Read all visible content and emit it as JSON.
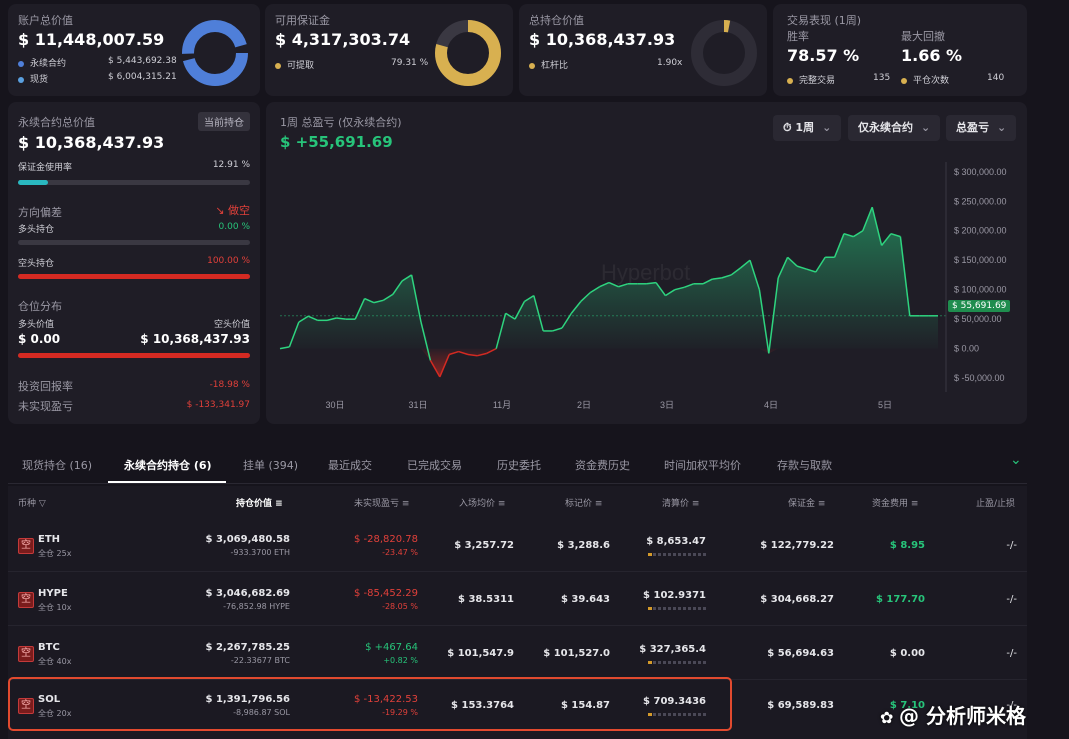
{
  "summary": {
    "account_total": {
      "label": "账户总价值",
      "value": "$ 11,448,007.59",
      "items": [
        {
          "label": "永续合约",
          "value": "$ 5,443,692.38",
          "color": "#4f7fd9"
        },
        {
          "label": "现货",
          "value": "$ 6,004,315.21",
          "color": "#5aa0e0"
        }
      ]
    },
    "available_margin": {
      "label": "可用保证金",
      "value": "$ 4,317,303.74",
      "item_label": "可提取",
      "item_value": "79.31 %",
      "ratio": 0.7931
    },
    "total_position": {
      "label": "总持仓价值",
      "value": "$ 10,368,437.93",
      "item_label": "杠杆比",
      "item_value": "1.90x",
      "ratio": 0.03
    },
    "performance": {
      "label": "交易表现 (1周)",
      "win_rate_label": "胜率",
      "win_rate": "78.57 %",
      "max_drawdown_label": "最大回撤",
      "max_drawdown": "1.66 %",
      "completed_label": "完整交易",
      "completed": "135",
      "closed_label": "平仓次数",
      "closed": "140"
    }
  },
  "perp_panel": {
    "title": "永续合约总价值",
    "badge": "当前持仓",
    "value": "$ 10,368,437.93",
    "margin_usage_label": "保证金使用率",
    "margin_usage": "12.91 %",
    "margin_usage_ratio": 0.1291,
    "bias_label": "方向偏差",
    "bias_value": "做空",
    "long_label": "多头持仓",
    "long_value": "0.00 %",
    "short_label": "空头持仓",
    "short_value": "100.00 %",
    "distribution_label": "仓位分布",
    "long_val_label": "多头价值",
    "short_val_label": "空头价值",
    "long_val": "$ 0.00",
    "short_val": "$ 10,368,437.93",
    "roi_label": "投资回报率",
    "roi": "-18.98 %",
    "upnl_label": "未实现盈亏",
    "upnl": "$ -133,341.97"
  },
  "pnl_chart": {
    "title": "1周 总盈亏 (仅永续合约)",
    "value": "$ +55,691.69",
    "btn_period": "1周",
    "btn_scope": "仅永续合约",
    "btn_metric": "总盈亏",
    "watermark": "Hyperbot",
    "current_label": "$ 55,691.69"
  },
  "chart_data": {
    "type": "area",
    "title": "1周 总盈亏 (仅永续合约)",
    "x_tick_labels": [
      "30日",
      "31日",
      "11月",
      "2日",
      "3日",
      "4日",
      "5日"
    ],
    "y_tick_labels": [
      "$ 300,000.00",
      "$ 250,000.00",
      "$ 200,000.00",
      "$ 150,000.00",
      "$ 100,000.00",
      "$ 50,000.00",
      "$ 0.00",
      "$ -50,000.00"
    ],
    "ylim": [
      -60000,
      320000
    ],
    "x": [
      0,
      1,
      2,
      3,
      4,
      5,
      6,
      7,
      8,
      9,
      10,
      11,
      12,
      13,
      14,
      15,
      16,
      17,
      18,
      19,
      20,
      21,
      22,
      23,
      24,
      25,
      26,
      27,
      28,
      29,
      30,
      31,
      32,
      33,
      34,
      35,
      36,
      37,
      38,
      39,
      40,
      41,
      42,
      43,
      44,
      45,
      46,
      47,
      48,
      49,
      50,
      51,
      52,
      53,
      54,
      55,
      56,
      57,
      58,
      59,
      60,
      61,
      62,
      63,
      64,
      65,
      66,
      67,
      68,
      69,
      70
    ],
    "values": [
      0,
      3000,
      45000,
      55000,
      48000,
      48000,
      52000,
      50000,
      50000,
      85000,
      78000,
      82000,
      92000,
      115000,
      125000,
      45000,
      -20000,
      -48000,
      -10000,
      -5000,
      -10000,
      -12000,
      -8000,
      0,
      60000,
      50000,
      80000,
      90000,
      30000,
      30000,
      35000,
      60000,
      80000,
      95000,
      105000,
      112000,
      105000,
      110000,
      110000,
      110000,
      112000,
      90000,
      100000,
      104000,
      110000,
      110000,
      118000,
      120000,
      125000,
      137000,
      150000,
      100000,
      -8000,
      120000,
      155000,
      140000,
      135000,
      130000,
      155000,
      155000,
      195000,
      190000,
      200000,
      240000,
      175000,
      195000,
      190000,
      55691,
      55691,
      55691,
      55691
    ],
    "grid": false
  },
  "tabs": [
    {
      "label": "现货持仓 (16)"
    },
    {
      "label": "永续合约持仓 (6)"
    },
    {
      "label": "挂单 (394)"
    },
    {
      "label": "最近成交"
    },
    {
      "label": "已完成交易"
    },
    {
      "label": "历史委托"
    },
    {
      "label": "资金费历史"
    },
    {
      "label": "时间加权平均价"
    },
    {
      "label": "存款与取款"
    }
  ],
  "table": {
    "headers": [
      "币种",
      "持仓价值",
      "未实现盈亏",
      "入场均价",
      "标记价",
      "清算价",
      "保证金",
      "资金费用",
      "止盈/止损"
    ],
    "rows": [
      {
        "side": "空",
        "coin": "ETH",
        "mode": "全仓 25x",
        "value": "$ 3,069,480.58",
        "size": "-933.3700 ETH",
        "pnl": "$ -28,820.78",
        "pnl_pct": "-23.47 %",
        "pnl_pos": false,
        "entry": "$ 3,257.72",
        "mark": "$ 3,288.6",
        "liq": "$ 8,653.47",
        "margin": "$ 122,779.22",
        "funding": "$ 8.95",
        "funding_pos": true,
        "tpsl": "-/-"
      },
      {
        "side": "空",
        "coin": "HYPE",
        "mode": "全仓 10x",
        "value": "$ 3,046,682.69",
        "size": "-76,852.98 HYPE",
        "pnl": "$ -85,452.29",
        "pnl_pct": "-28.05 %",
        "pnl_pos": false,
        "entry": "$ 38.5311",
        "mark": "$ 39.643",
        "liq": "$ 102.9371",
        "margin": "$ 304,668.27",
        "funding": "$ 177.70",
        "funding_pos": true,
        "tpsl": "-/-"
      },
      {
        "side": "空",
        "coin": "BTC",
        "mode": "全仓 40x",
        "value": "$ 2,267,785.25",
        "size": "-22.33677 BTC",
        "pnl": "$ +467.64",
        "pnl_pct": "+0.82 %",
        "pnl_pos": true,
        "entry": "$ 101,547.9",
        "mark": "$ 101,527.0",
        "liq": "$ 327,365.4",
        "margin": "$ 56,694.63",
        "funding": "$ 0.00",
        "funding_pos": false,
        "tpsl": "-/-"
      },
      {
        "side": "空",
        "coin": "SOL",
        "mode": "全仓 20x",
        "value": "$ 1,391,796.56",
        "size": "-8,986.87 SOL",
        "pnl": "$ -13,422.53",
        "pnl_pct": "-19.29 %",
        "pnl_pos": false,
        "entry": "$ 153.3764",
        "mark": "$ 154.87",
        "liq": "$ 709.3436",
        "margin": "$ 69,589.83",
        "funding": "$ 7.10",
        "funding_pos": true,
        "tpsl": "-/-"
      }
    ]
  },
  "overlay_watermark": "@ 分析师米格",
  "colors": {
    "accent_green": "#27c47a",
    "accent_red": "#e0403a",
    "gold": "#d8b050",
    "blue": "#4f7fd9",
    "teal": "#2ab8c0",
    "highlight": "#e24a2f"
  }
}
